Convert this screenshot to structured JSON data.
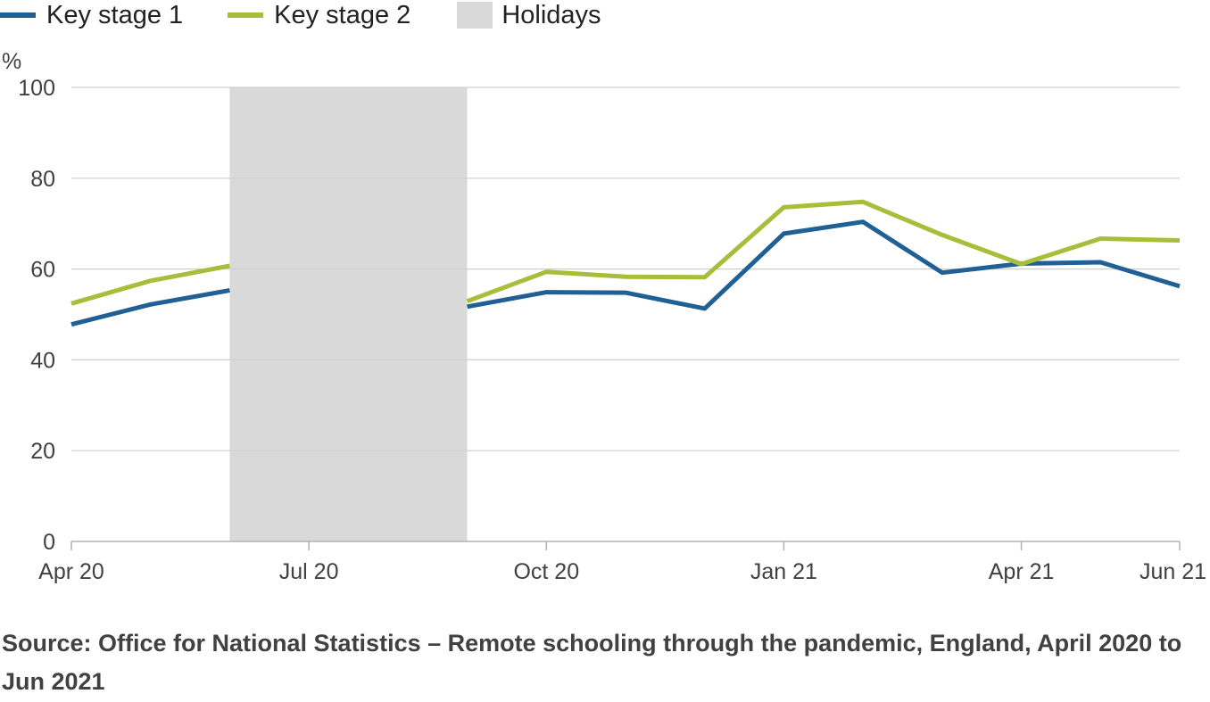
{
  "chart_data": {
    "type": "line",
    "ylabel": "%",
    "ylim": [
      0,
      100
    ],
    "yticks": [
      0,
      20,
      40,
      60,
      80,
      100
    ],
    "x_tick_labels": [
      "Apr 20",
      "Jul 20",
      "Oct 20",
      "Jan 21",
      "Apr 21",
      "Jun 21"
    ],
    "x_tick_positions": [
      0,
      3,
      6,
      9,
      12,
      14
    ],
    "x": [
      0,
      1,
      2,
      5,
      6,
      7,
      8,
      9,
      10,
      11,
      12,
      13,
      14
    ],
    "series": [
      {
        "name": "Key stage 1",
        "color": "#206095",
        "segments": [
          {
            "x": [
              0,
              1,
              2
            ],
            "values": [
              47.8,
              52.2,
              55.3
            ]
          },
          {
            "x": [
              5,
              6,
              7,
              8,
              9,
              10,
              11,
              12,
              13,
              14
            ],
            "values": [
              51.7,
              54.9,
              54.8,
              51.3,
              67.8,
              70.4,
              59.2,
              61.2,
              61.5,
              56.2
            ]
          }
        ]
      },
      {
        "name": "Key stage 2",
        "color": "#a8bd3a",
        "segments": [
          {
            "x": [
              0,
              1,
              2
            ],
            "values": [
              52.4,
              57.4,
              60.7
            ]
          },
          {
            "x": [
              5,
              6,
              7,
              8,
              9,
              10,
              11,
              12,
              13,
              14
            ],
            "values": [
              52.9,
              59.4,
              58.3,
              58.2,
              73.6,
              74.8,
              67.5,
              61.1,
              66.7,
              66.3
            ]
          }
        ]
      }
    ],
    "shaded_regions": [
      {
        "name": "Holidays",
        "x_start": 2,
        "x_end": 5,
        "color": "#d9d9d9"
      }
    ],
    "grid": true,
    "legend_position": "top-left"
  },
  "legend": {
    "ks1": "Key stage 1",
    "ks2": "Key stage 2",
    "holidays": "Holidays"
  },
  "source": "Source: Office for National Statistics – Remote schooling through the pandemic, England, April 2020 to Jun 2021"
}
